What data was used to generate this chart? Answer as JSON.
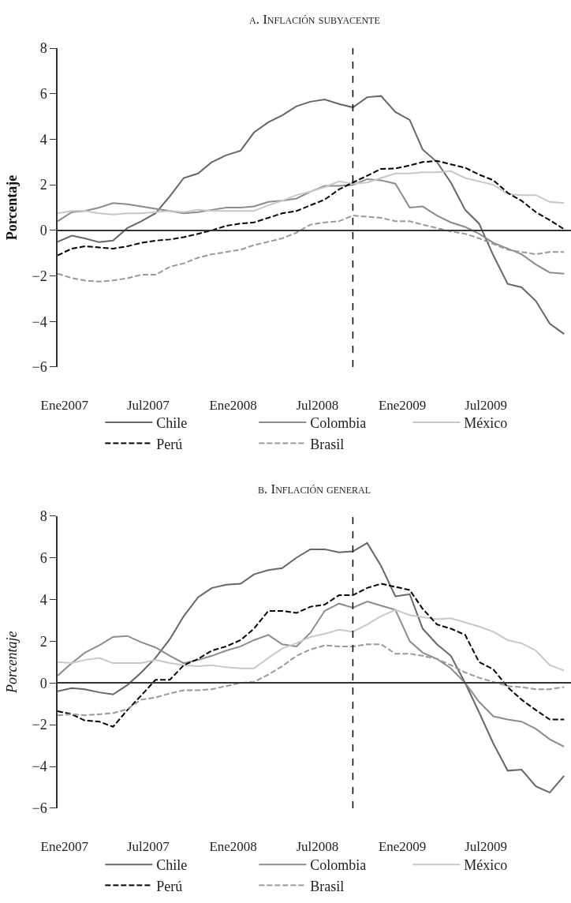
{
  "chart_data": [
    {
      "type": "line",
      "title": "a. Inflación subyacente",
      "ylabel": "Porcentaje",
      "x": [
        "2007-01",
        "2007-02",
        "2007-03",
        "2007-04",
        "2007-05",
        "2007-06",
        "2007-07",
        "2007-08",
        "2007-09",
        "2007-10",
        "2007-11",
        "2007-12",
        "2008-01",
        "2008-02",
        "2008-03",
        "2008-04",
        "2008-05",
        "2008-06",
        "2008-07",
        "2008-08",
        "2008-09",
        "2008-10",
        "2008-11",
        "2008-12",
        "2009-01",
        "2009-02",
        "2009-03",
        "2009-04",
        "2009-05",
        "2009-06",
        "2009-07",
        "2009-08",
        "2009-09",
        "2009-10",
        "2009-11",
        "2009-12",
        "2010-01"
      ],
      "series": [
        {
          "name": "Chile",
          "color": "#666666",
          "line_style": "solid",
          "values": [
            -0.5,
            -0.23,
            -0.35,
            -0.52,
            -0.45,
            0.1,
            0.4,
            0.75,
            1.5,
            2.3,
            2.5,
            3.0,
            3.3,
            3.5,
            4.3,
            4.75,
            5.05,
            5.45,
            5.65,
            5.75,
            5.55,
            5.4,
            5.85,
            5.9,
            5.2,
            4.85,
            3.55,
            3.0,
            2.1,
            0.9,
            0.3,
            -1.1,
            -2.35,
            -2.5,
            -3.1,
            -4.1,
            -4.55
          ]
        },
        {
          "name": "Colombia",
          "color": "#8c8c8c",
          "line_style": "solid",
          "values": [
            0.4,
            0.8,
            0.85,
            1.0,
            1.2,
            1.15,
            1.05,
            0.95,
            0.85,
            0.75,
            0.8,
            0.9,
            1.0,
            1.0,
            1.05,
            1.25,
            1.3,
            1.4,
            1.7,
            1.95,
            1.95,
            2.0,
            2.25,
            2.2,
            2.05,
            1.0,
            1.05,
            0.65,
            0.35,
            0.15,
            -0.15,
            -0.55,
            -0.8,
            -1.05,
            -1.5,
            -1.85,
            -1.9
          ]
        },
        {
          "name": "México",
          "color": "#c8c8c8",
          "line_style": "solid",
          "values": [
            0.75,
            0.85,
            0.85,
            0.75,
            0.7,
            0.75,
            0.75,
            0.8,
            0.85,
            0.8,
            0.9,
            0.85,
            0.85,
            0.85,
            0.85,
            1.1,
            1.3,
            1.55,
            1.7,
            1.9,
            2.15,
            2.05,
            2.1,
            2.3,
            2.5,
            2.5,
            2.55,
            2.55,
            2.6,
            2.3,
            2.15,
            2.0,
            1.6,
            1.55,
            1.55,
            1.25,
            1.2
          ]
        },
        {
          "name": "Perú",
          "color": "#000000",
          "line_style": "dashed",
          "values": [
            -1.1,
            -0.8,
            -0.7,
            -0.75,
            -0.8,
            -0.7,
            -0.55,
            -0.45,
            -0.4,
            -0.3,
            -0.15,
            0.0,
            0.2,
            0.3,
            0.35,
            0.55,
            0.75,
            0.85,
            1.1,
            1.35,
            1.8,
            2.1,
            2.4,
            2.7,
            2.72,
            2.85,
            3.0,
            3.05,
            2.9,
            2.75,
            2.45,
            2.2,
            1.65,
            1.3,
            0.8,
            0.45,
            0.05
          ]
        },
        {
          "name": "Brasil",
          "color": "#999999",
          "line_style": "dashed",
          "values": [
            -1.9,
            -2.1,
            -2.2,
            -2.25,
            -2.2,
            -2.1,
            -1.95,
            -1.95,
            -1.6,
            -1.45,
            -1.2,
            -1.05,
            -0.95,
            -0.85,
            -0.65,
            -0.5,
            -0.35,
            -0.1,
            0.25,
            0.35,
            0.4,
            0.65,
            0.6,
            0.55,
            0.4,
            0.4,
            0.25,
            0.1,
            -0.05,
            -0.15,
            -0.35,
            -0.6,
            -0.85,
            -0.95,
            -1.05,
            -0.95,
            -0.95
          ]
        }
      ],
      "xlim": [
        "2007-01-01",
        "2010-01-16"
      ],
      "xticks": [
        {
          "value": "2007-01-16",
          "label": "Ene2007"
        },
        {
          "value": "2007-07-16",
          "label": "Jul2007"
        },
        {
          "value": "2008-01-16",
          "label": "Ene2008"
        },
        {
          "value": "2008-07-16",
          "label": "Jul2008"
        },
        {
          "value": "2009-01-16",
          "label": "Ene2009"
        },
        {
          "value": "2009-07-16",
          "label": "Jul2009"
        }
      ],
      "ylim": [
        -6,
        8
      ],
      "yticks": [
        -6,
        -4,
        -2,
        0,
        2,
        4,
        6,
        8
      ],
      "ref_lines": [
        {
          "axis": "x",
          "value": "2008-10-01",
          "color": "#000000",
          "line_style": "dashed"
        }
      ],
      "legend": "bottom"
    },
    {
      "type": "line",
      "title": "b. Inflación general",
      "ylabel": "Porcentaje",
      "x": [
        "2007-01",
        "2007-02",
        "2007-03",
        "2007-04",
        "2007-05",
        "2007-06",
        "2007-07",
        "2007-08",
        "2007-09",
        "2007-10",
        "2007-11",
        "2007-12",
        "2008-01",
        "2008-02",
        "2008-03",
        "2008-04",
        "2008-05",
        "2008-06",
        "2008-07",
        "2008-08",
        "2008-09",
        "2008-10",
        "2008-11",
        "2008-12",
        "2009-01",
        "2009-02",
        "2009-03",
        "2009-04",
        "2009-05",
        "2009-06",
        "2009-07",
        "2009-08",
        "2009-09",
        "2009-10",
        "2009-11",
        "2009-12",
        "2010-01"
      ],
      "series": [
        {
          "name": "Chile",
          "color": "#666666",
          "line_style": "solid",
          "values": [
            -0.4,
            -0.25,
            -0.3,
            -0.45,
            -0.55,
            -0.1,
            0.5,
            1.2,
            2.1,
            3.2,
            4.1,
            4.55,
            4.7,
            4.75,
            5.2,
            5.4,
            5.5,
            6.0,
            6.4,
            6.4,
            6.25,
            6.3,
            6.7,
            5.6,
            4.15,
            4.25,
            2.6,
            1.85,
            1.3,
            0.0,
            -1.4,
            -2.9,
            -4.2,
            -4.15,
            -4.95,
            -5.25,
            -4.45
          ]
        },
        {
          "name": "Colombia",
          "color": "#8c8c8c",
          "line_style": "solid",
          "values": [
            0.35,
            0.95,
            1.45,
            1.8,
            2.2,
            2.25,
            1.95,
            1.7,
            1.3,
            0.95,
            1.1,
            1.3,
            1.55,
            1.75,
            2.05,
            2.3,
            1.85,
            1.75,
            2.4,
            3.45,
            3.8,
            3.6,
            3.9,
            3.7,
            3.5,
            2.0,
            1.45,
            1.15,
            0.7,
            0.0,
            -0.9,
            -1.6,
            -1.75,
            -1.85,
            -2.2,
            -2.7,
            -3.05
          ]
        },
        {
          "name": "México",
          "color": "#c8c8c8",
          "line_style": "solid",
          "values": [
            1.0,
            0.95,
            1.1,
            1.2,
            0.95,
            0.95,
            0.95,
            1.1,
            0.95,
            0.85,
            0.8,
            0.85,
            0.75,
            0.7,
            0.7,
            1.2,
            1.65,
            1.9,
            2.2,
            2.35,
            2.55,
            2.45,
            2.8,
            3.2,
            3.5,
            3.25,
            3.15,
            3.05,
            3.1,
            2.9,
            2.7,
            2.45,
            2.05,
            1.9,
            1.55,
            0.85,
            0.6
          ]
        },
        {
          "name": "Perú",
          "color": "#000000",
          "line_style": "dashed",
          "values": [
            -1.35,
            -1.5,
            -1.8,
            -1.85,
            -2.1,
            -1.3,
            -0.6,
            0.15,
            0.15,
            0.85,
            1.15,
            1.55,
            1.75,
            2.05,
            2.6,
            3.45,
            3.45,
            3.35,
            3.65,
            3.75,
            4.2,
            4.2,
            4.55,
            4.75,
            4.6,
            4.45,
            3.55,
            2.8,
            2.6,
            2.3,
            1.0,
            0.65,
            -0.2,
            -0.8,
            -1.3,
            -1.75,
            -1.75
          ]
        },
        {
          "name": "Brasil",
          "color": "#999999",
          "line_style": "dashed",
          "values": [
            -1.55,
            -1.5,
            -1.55,
            -1.5,
            -1.45,
            -1.25,
            -0.8,
            -0.7,
            -0.5,
            -0.35,
            -0.35,
            -0.3,
            -0.15,
            0.0,
            0.05,
            0.4,
            0.8,
            1.3,
            1.6,
            1.8,
            1.75,
            1.75,
            1.85,
            1.85,
            1.4,
            1.4,
            1.3,
            1.15,
            0.85,
            0.5,
            0.25,
            0.05,
            -0.15,
            -0.2,
            -0.3,
            -0.3,
            -0.2
          ]
        }
      ],
      "xlim": [
        "2007-01-01",
        "2010-01-16"
      ],
      "xticks": [
        {
          "value": "2007-01-16",
          "label": "Ene2007"
        },
        {
          "value": "2007-07-16",
          "label": "Jul2007"
        },
        {
          "value": "2008-01-16",
          "label": "Ene2008"
        },
        {
          "value": "2008-07-16",
          "label": "Jul2008"
        },
        {
          "value": "2009-01-16",
          "label": "Ene2009"
        },
        {
          "value": "2009-07-16",
          "label": "Jul2009"
        }
      ],
      "ylim": [
        -6,
        8
      ],
      "yticks": [
        -6,
        -4,
        -2,
        0,
        2,
        4,
        6,
        8
      ],
      "ref_lines": [
        {
          "axis": "x",
          "value": "2008-10-01",
          "color": "#000000",
          "line_style": "dashed"
        }
      ],
      "legend": "bottom"
    }
  ]
}
